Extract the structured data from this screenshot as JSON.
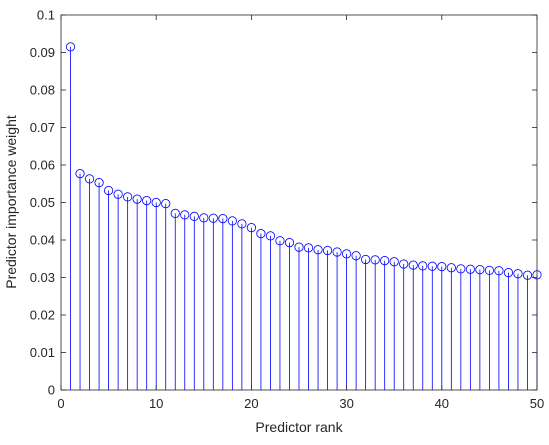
{
  "chart_data": {
    "type": "stem",
    "xlabel": "Predictor rank",
    "ylabel": "Predictor importance weight",
    "xlim": [
      0,
      50
    ],
    "ylim": [
      0,
      0.1
    ],
    "xticks": [
      "0",
      "10",
      "20",
      "30",
      "40",
      "50"
    ],
    "yticks": [
      "0",
      "0.01",
      "0.02",
      "0.03",
      "0.04",
      "0.05",
      "0.06",
      "0.07",
      "0.08",
      "0.09",
      "0.1"
    ],
    "grid": false,
    "series_color": "#0000ff",
    "marker": "circle",
    "x": [
      1,
      2,
      3,
      4,
      5,
      6,
      7,
      8,
      9,
      10,
      11,
      12,
      13,
      14,
      15,
      16,
      17,
      18,
      19,
      20,
      21,
      22,
      23,
      24,
      25,
      26,
      27,
      28,
      29,
      30,
      31,
      32,
      33,
      34,
      35,
      36,
      37,
      38,
      39,
      40,
      41,
      42,
      43,
      44,
      45,
      46,
      47,
      48,
      49,
      50
    ],
    "values": [
      0.0915,
      0.0577,
      0.0563,
      0.0553,
      0.0532,
      0.0522,
      0.0515,
      0.0509,
      0.0505,
      0.05,
      0.0497,
      0.0471,
      0.0467,
      0.0463,
      0.0459,
      0.0458,
      0.0457,
      0.0451,
      0.0443,
      0.0433,
      0.0417,
      0.0411,
      0.0398,
      0.0393,
      0.0381,
      0.0379,
      0.0374,
      0.0372,
      0.0368,
      0.0363,
      0.0358,
      0.0348,
      0.0347,
      0.0345,
      0.0342,
      0.0336,
      0.0333,
      0.0331,
      0.033,
      0.0329,
      0.0326,
      0.0323,
      0.0322,
      0.0321,
      0.0319,
      0.0318,
      0.0313,
      0.031,
      0.0306,
      0.0307
    ]
  }
}
